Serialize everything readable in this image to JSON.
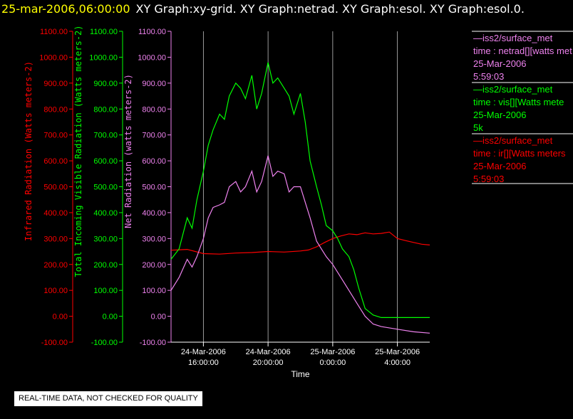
{
  "header": {
    "timestamp": "25-mar-2006,06:00:00",
    "graph_titles": "XY Graph:xy-grid.  XY Graph:netrad.  XY Graph:esol.  XY Graph:esol.0."
  },
  "footer": {
    "note": "REAL-TIME DATA, NOT CHECKED FOR QUALITY"
  },
  "legend": [
    {
      "lines": [
        "—iss2/surface_met",
        "time : netrad[][watts met",
        "25-Mar-2006",
        "5:59:03"
      ],
      "color": "#ee82ee"
    },
    {
      "lines": [
        "—iss2/surface_met",
        "time : vis[][Watts mete",
        "25-Mar-2006",
        "5k"
      ],
      "color": "#00ff00"
    },
    {
      "lines": [
        "—iss2/surface_met",
        "time : ir[][Watts meters",
        "25-Mar-2006",
        "5:59:03"
      ],
      "color": "#ff0000"
    }
  ],
  "chart_data": {
    "type": "line",
    "xlabel": "Time",
    "x_range_hours": [
      14.0,
      30.0
    ],
    "x_ticks": [
      {
        "hour": 16,
        "label": [
          "24-Mar-2006",
          "16:00:00"
        ]
      },
      {
        "hour": 20,
        "label": [
          "24-Mar-2006",
          "20:00:00"
        ]
      },
      {
        "hour": 24,
        "label": [
          "25-Mar-2006",
          "0:00:00"
        ]
      },
      {
        "hour": 28,
        "label": [
          "25-Mar-2006",
          "4:00:00"
        ]
      }
    ],
    "ylim": [
      -100,
      1100
    ],
    "y_ticks": [
      -100,
      0,
      100,
      200,
      300,
      400,
      500,
      600,
      700,
      800,
      900,
      1000,
      1100
    ],
    "y_tick_labels": [
      "-100.00",
      "0.00",
      "100.00",
      "200.00",
      "300.00",
      "400.00",
      "500.00",
      "600.00",
      "700.00",
      "800.00",
      "900.00",
      "1000.00",
      "1100.00"
    ],
    "axes": [
      {
        "label": "Infrared Radiation (Watts meters-2)",
        "color": "#ff0000"
      },
      {
        "label": "Total Incoming Visible Radiation (Watts meters-2)",
        "color": "#00ff00"
      },
      {
        "label": "Net Radiation (watts meters-2)",
        "color": "#ee82ee"
      }
    ],
    "grid": "vertical",
    "series": [
      {
        "color": "#ff0000",
        "x": [
          14.0,
          15.0,
          16.0,
          17.0,
          18.0,
          19.0,
          20.0,
          21.0,
          22.0,
          22.5,
          23.0,
          23.5,
          24.0,
          24.5,
          25.0,
          25.5,
          26.0,
          26.5,
          27.0,
          27.5,
          28.0,
          28.5,
          29.0,
          29.5,
          30.0
        ],
        "y": [
          255,
          258,
          242,
          240,
          244,
          246,
          250,
          248,
          252,
          256,
          268,
          285,
          300,
          310,
          318,
          315,
          322,
          318,
          320,
          325,
          300,
          292,
          285,
          278,
          275
        ]
      },
      {
        "color": "#00ff00",
        "x": [
          14.0,
          14.5,
          15.0,
          15.3,
          15.6,
          16.0,
          16.3,
          16.6,
          17.0,
          17.3,
          17.6,
          18.0,
          18.3,
          18.6,
          19.0,
          19.3,
          19.6,
          20.0,
          20.3,
          20.6,
          21.0,
          21.3,
          21.6,
          22.0,
          22.3,
          22.6,
          23.0,
          23.3,
          23.6,
          24.0,
          24.3,
          24.6,
          25.0,
          25.3,
          25.6,
          26.0,
          26.5,
          27.0,
          28.0,
          29.0,
          30.0
        ],
        "y": [
          220,
          260,
          380,
          340,
          450,
          560,
          660,
          720,
          780,
          760,
          850,
          900,
          880,
          840,
          930,
          800,
          860,
          980,
          900,
          920,
          880,
          850,
          780,
          860,
          750,
          600,
          500,
          430,
          350,
          330,
          300,
          260,
          230,
          180,
          110,
          30,
          5,
          -5,
          -5,
          -5,
          -5
        ]
      },
      {
        "color": "#ee82ee",
        "x": [
          14.0,
          14.5,
          15.0,
          15.3,
          15.6,
          16.0,
          16.3,
          16.6,
          17.0,
          17.3,
          17.6,
          18.0,
          18.3,
          18.6,
          19.0,
          19.3,
          19.6,
          20.0,
          20.3,
          20.6,
          21.0,
          21.3,
          21.6,
          22.0,
          22.3,
          22.6,
          23.0,
          23.3,
          23.6,
          24.0,
          24.3,
          24.6,
          25.0,
          25.5,
          26.0,
          26.5,
          27.0,
          28.0,
          29.0,
          30.0
        ],
        "y": [
          100,
          150,
          220,
          190,
          230,
          300,
          380,
          420,
          430,
          440,
          500,
          520,
          480,
          500,
          560,
          480,
          520,
          620,
          540,
          560,
          550,
          480,
          500,
          500,
          440,
          380,
          290,
          260,
          230,
          200,
          170,
          140,
          100,
          50,
          0,
          -30,
          -40,
          -50,
          -60,
          -65
        ]
      }
    ]
  }
}
